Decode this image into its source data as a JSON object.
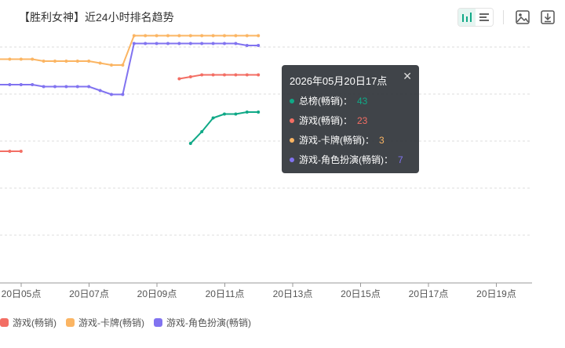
{
  "page": {
    "title": "【胜利女神】近24小时排名趋势"
  },
  "toolbar": {
    "icons": [
      "bar-chart-icon",
      "list-icon",
      "image-icon",
      "download-icon"
    ],
    "active_icon": "bar-chart-icon"
  },
  "colors": {
    "teal": "#10a987",
    "red": "#f36e64",
    "orange": "#fbb563",
    "purple": "#8173f0",
    "grid": "#dcdcdc",
    "axis": "#999999"
  },
  "chart_data": {
    "type": "line",
    "x_ticks": [
      "20日05点",
      "20日07点",
      "20日09点",
      "20日11点",
      "20日13点",
      "20日15点",
      "20日17点",
      "20日19点"
    ],
    "series": [
      {
        "name": "总榜(畅销)",
        "color": "#10a987",
        "values": [
          null,
          null,
          null,
          null,
          null,
          null,
          null,
          null,
          null,
          null,
          null,
          null,
          null,
          null,
          null,
          null,
          null,
          58,
          52,
          45,
          43,
          43,
          42,
          42
        ]
      },
      {
        "name": "游戏(畅销)",
        "color": "#f36e64",
        "values": [
          62,
          62,
          62,
          null,
          null,
          null,
          null,
          null,
          null,
          null,
          null,
          null,
          null,
          null,
          null,
          null,
          25,
          24,
          23,
          23,
          23,
          23,
          23,
          23
        ]
      },
      {
        "name": "游戏-卡牌(畅销)",
        "color": "#fbb563",
        "values": [
          15,
          15,
          15,
          15,
          16,
          16,
          16,
          16,
          16,
          17,
          18,
          18,
          3,
          3,
          3,
          3,
          3,
          3,
          3,
          3,
          3,
          3,
          3,
          3
        ]
      },
      {
        "name": "游戏-角色扮演(畅销)",
        "color": "#8173f0",
        "values": [
          28,
          28,
          28,
          28,
          29,
          29,
          29,
          29,
          29,
          31,
          33,
          33,
          7,
          7,
          7,
          7,
          7,
          7,
          7,
          7,
          7,
          7,
          8,
          8
        ]
      }
    ],
    "legend": [
      "游戏(畅销)",
      "游戏-卡牌(畅销)",
      "游戏-角色扮演(畅销)"
    ],
    "tooltip": {
      "time": "2026年05月20日17点",
      "close": "✕",
      "rows": [
        {
          "label": "总榜(畅销)：",
          "value": "43",
          "color": "#10a987"
        },
        {
          "label": "游戏(畅销)：",
          "value": "23",
          "color": "#f36e64"
        },
        {
          "label": "游戏-卡牌(畅销)：",
          "value": "3",
          "color": "#fbb563"
        },
        {
          "label": "游戏-角色扮演(畅销)：",
          "value": "7",
          "color": "#8173f0"
        }
      ]
    },
    "grid": true,
    "legend_position": "bottom-left"
  }
}
